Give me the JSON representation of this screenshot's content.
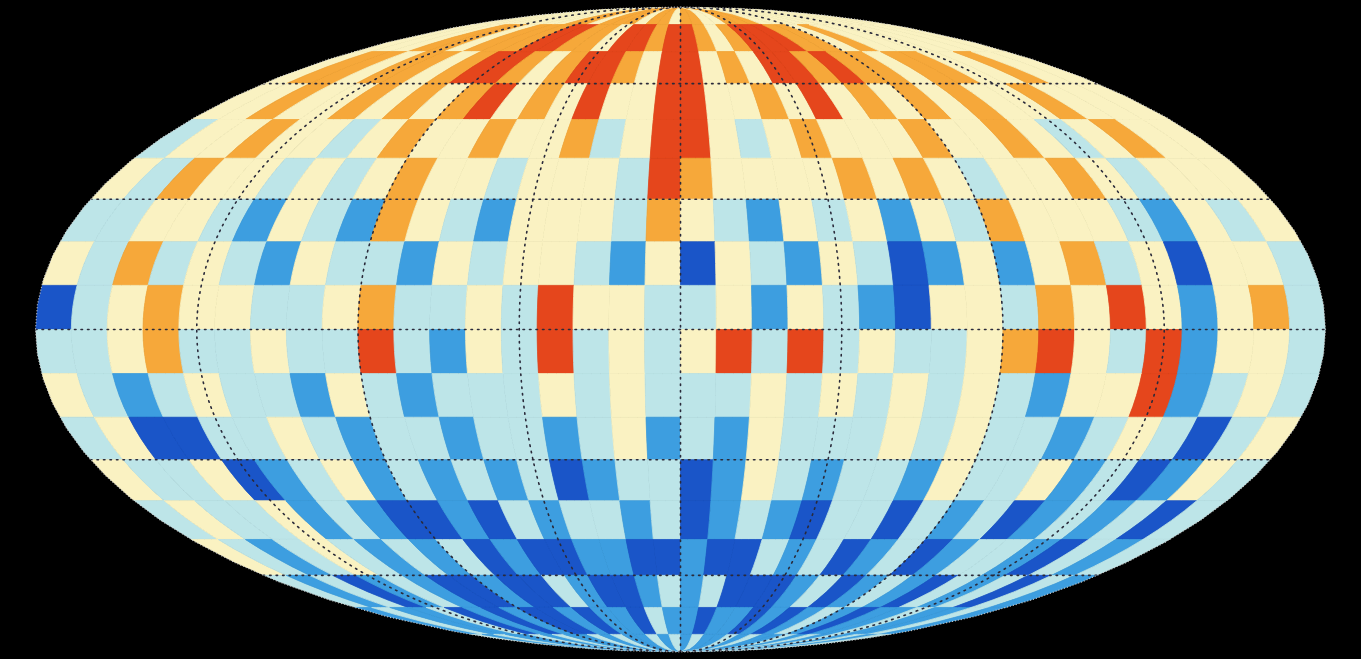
{
  "chart_data": {
    "type": "heatmap",
    "xlim": [
      -180,
      180
    ],
    "ylim": [
      -90,
      90
    ],
    "xticks": [
      -135,
      -90,
      -45,
      0,
      45,
      90,
      135
    ],
    "yticks": [
      -60,
      -30,
      0,
      30,
      60
    ],
    "grid": true,
    "tick_labels": false,
    "levels": [
      -3,
      -2,
      -1,
      1,
      2,
      3
    ],
    "colors": [
      "#1a55c8",
      "#3d9ee0",
      "#bde5e8",
      "#faf2c2",
      "#f6a83a",
      "#e5461c"
    ],
    "x": [
      -175,
      -165,
      -155,
      -145,
      -135,
      -125,
      -115,
      -105,
      -95,
      -85,
      -75,
      -65,
      -55,
      -45,
      -35,
      -25,
      -15,
      -5,
      5,
      15,
      25,
      35,
      45,
      55,
      65,
      75,
      85,
      95,
      105,
      115,
      125,
      135,
      145,
      155,
      165,
      175
    ],
    "y": [
      85,
      75,
      65,
      55,
      45,
      35,
      25,
      15,
      5,
      -5,
      -15,
      -25,
      -35,
      -45,
      -55,
      -65,
      -75,
      -85
    ],
    "cells": [
      [
        1,
        1,
        1,
        1,
        1,
        1,
        1,
        1,
        2,
        2,
        1,
        2,
        2,
        2,
        1,
        2,
        2,
        1,
        2,
        2,
        1,
        1,
        2,
        2,
        2,
        1,
        1,
        1,
        1,
        1,
        1,
        1,
        1,
        1,
        1,
        1
      ],
      [
        1,
        1,
        1,
        2,
        2,
        1,
        2,
        2,
        2,
        3,
        3,
        2,
        2,
        1,
        3,
        3,
        2,
        3,
        3,
        2,
        1,
        2,
        3,
        3,
        3,
        2,
        2,
        1,
        2,
        1,
        1,
        1,
        1,
        1,
        1,
        1
      ],
      [
        1,
        2,
        2,
        1,
        2,
        2,
        1,
        2,
        3,
        3,
        2,
        1,
        2,
        3,
        3,
        2,
        1,
        3,
        3,
        1,
        2,
        1,
        3,
        3,
        2,
        3,
        2,
        2,
        1,
        2,
        2,
        1,
        1,
        2,
        1,
        1
      ],
      [
        1,
        1,
        2,
        1,
        1,
        2,
        1,
        2,
        1,
        2,
        3,
        1,
        2,
        1,
        3,
        1,
        1,
        3,
        3,
        1,
        1,
        2,
        1,
        3,
        1,
        2,
        1,
        2,
        1,
        2,
        1,
        1,
        2,
        1,
        1,
        1
      ],
      [
        -1,
        1,
        1,
        2,
        1,
        1,
        -1,
        1,
        2,
        1,
        1,
        2,
        1,
        1,
        2,
        -1,
        1,
        3,
        3,
        1,
        -1,
        1,
        2,
        1,
        1,
        1,
        2,
        1,
        1,
        2,
        1,
        -1,
        1,
        2,
        1,
        1
      ],
      [
        1,
        -1,
        2,
        1,
        1,
        -1,
        1,
        -1,
        1,
        2,
        1,
        1,
        -1,
        1,
        1,
        1,
        -1,
        3,
        2,
        1,
        1,
        1,
        1,
        2,
        1,
        2,
        1,
        -1,
        1,
        1,
        2,
        1,
        -1,
        1,
        1,
        1
      ],
      [
        -1,
        -1,
        1,
        1,
        -1,
        -2,
        1,
        -1,
        -2,
        2,
        1,
        -1,
        -2,
        1,
        1,
        1,
        -1,
        2,
        1,
        -1,
        -2,
        1,
        -1,
        1,
        -2,
        1,
        -1,
        2,
        1,
        1,
        1,
        -1,
        -2,
        1,
        -1,
        1
      ],
      [
        1,
        -1,
        2,
        -1,
        1,
        -1,
        -2,
        1,
        -1,
        -1,
        -2,
        1,
        -1,
        1,
        1,
        -1,
        -2,
        1,
        -3,
        1,
        -1,
        -2,
        1,
        -1,
        -3,
        -2,
        1,
        -2,
        1,
        2,
        -1,
        1,
        -3,
        1,
        1,
        -1
      ],
      [
        -3,
        -1,
        1,
        2,
        1,
        1,
        -1,
        -1,
        1,
        2,
        -1,
        -1,
        1,
        -1,
        3,
        1,
        1,
        -1,
        -1,
        1,
        -2,
        1,
        -1,
        -2,
        -3,
        1,
        1,
        -1,
        2,
        1,
        3,
        1,
        -2,
        1,
        2,
        -1
      ],
      [
        -1,
        -1,
        1,
        2,
        -1,
        -1,
        1,
        -1,
        -1,
        3,
        -1,
        -2,
        1,
        -1,
        3,
        -1,
        1,
        -1,
        1,
        3,
        -1,
        3,
        -1,
        1,
        -1,
        -1,
        1,
        2,
        3,
        1,
        -1,
        3,
        -2,
        1,
        1,
        -1
      ],
      [
        1,
        -1,
        -2,
        -1,
        1,
        -1,
        -1,
        -2,
        1,
        -1,
        -2,
        -1,
        -1,
        -1,
        1,
        -1,
        1,
        -1,
        -1,
        -1,
        1,
        -1,
        1,
        -1,
        1,
        -1,
        1,
        -1,
        -2,
        1,
        1,
        3,
        -2,
        -1,
        1,
        -1
      ],
      [
        -1,
        1,
        -3,
        -3,
        -1,
        -1,
        1,
        -1,
        -2,
        -1,
        -1,
        -2,
        -1,
        -1,
        -2,
        -1,
        1,
        -2,
        -1,
        -2,
        1,
        -1,
        -1,
        -1,
        1,
        -1,
        1,
        -1,
        -1,
        -2,
        -1,
        1,
        -1,
        -3,
        -1,
        1
      ],
      [
        1,
        -1,
        -1,
        1,
        -3,
        -2,
        -1,
        1,
        -2,
        -1,
        -2,
        -1,
        -2,
        -1,
        -3,
        -2,
        -1,
        -1,
        -3,
        -2,
        1,
        -1,
        -2,
        -1,
        -1,
        -2,
        1,
        -1,
        -1,
        1,
        -2,
        -1,
        -3,
        -2,
        1,
        -1
      ],
      [
        -1,
        1,
        -1,
        -1,
        1,
        -2,
        -1,
        -2,
        -3,
        -3,
        -2,
        -3,
        -1,
        -2,
        -1,
        -1,
        -2,
        -1,
        -3,
        -2,
        -1,
        -2,
        -3,
        -1,
        -1,
        -3,
        -1,
        -2,
        -1,
        -3,
        -2,
        -1,
        -2,
        -1,
        -3,
        -1
      ],
      [
        1,
        -1,
        -2,
        -1,
        1,
        -1,
        -2,
        -1,
        -2,
        -1,
        -3,
        -2,
        -3,
        -3,
        -2,
        -2,
        -3,
        -3,
        -2,
        -3,
        -3,
        -1,
        -2,
        -1,
        -3,
        -2,
        -1,
        -3,
        -2,
        -1,
        -1,
        -2,
        -3,
        -1,
        -2,
        -1
      ],
      [
        -1,
        -2,
        -1,
        -3,
        -2,
        -1,
        -2,
        -3,
        -3,
        -2,
        -3,
        -3,
        -1,
        -2,
        -3,
        -3,
        -2,
        -1,
        -2,
        -1,
        -3,
        -3,
        -3,
        -2,
        -1,
        -3,
        -2,
        -1,
        -2,
        -3,
        -1,
        -2,
        -1,
        -3,
        -1,
        -2
      ],
      [
        -2,
        -1,
        -2,
        -2,
        -1,
        -3,
        -2,
        -3,
        -2,
        -3,
        -3,
        -2,
        -3,
        -2,
        -2,
        -3,
        -1,
        -2,
        -2,
        -3,
        -2,
        -2,
        -3,
        -2,
        -3,
        -2,
        -1,
        -2,
        -3,
        -2,
        -2,
        -1,
        -2,
        -2,
        -1,
        -2
      ],
      [
        -1,
        -2,
        -1,
        -2,
        -2,
        -1,
        -2,
        -1,
        -2,
        -2,
        -1,
        -2,
        -1,
        -2,
        -2,
        -1,
        -2,
        -1,
        -2,
        -1,
        -2,
        -2,
        -1,
        -2,
        -1,
        -2,
        -2,
        -1,
        -2,
        -1,
        -2,
        -1,
        -2,
        -1,
        -2,
        -1
      ]
    ]
  }
}
